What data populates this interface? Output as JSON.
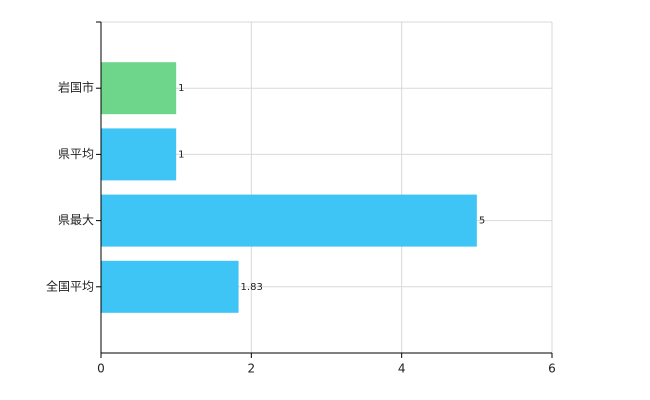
{
  "chart_data": {
    "type": "bar",
    "orientation": "horizontal",
    "categories": [
      "岩国市",
      "県平均",
      "県最大",
      "全国平均"
    ],
    "values": [
      1,
      1,
      5,
      1.83
    ],
    "colors": [
      "#6dd68a",
      "#3ec4f5",
      "#3ec4f5",
      "#3ec4f5"
    ],
    "xlim": [
      0,
      6
    ],
    "xticks": [
      0,
      2,
      4,
      6
    ],
    "grid": true
  }
}
